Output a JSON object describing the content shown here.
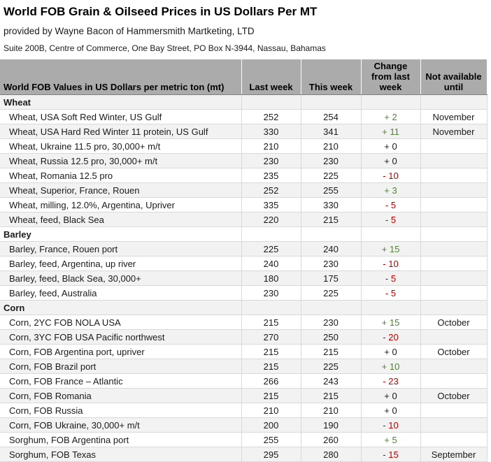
{
  "header": {
    "title": "World FOB Grain & Oilseed Prices in US Dollars Per MT",
    "provider": "provided by Wayne Bacon of Hammersmith Martketing, LTD",
    "address": "Suite 200B, Centre of Commerce, One Bay Street, PO Box N-3944, Nassau, Bahamas"
  },
  "colors": {
    "positive": "#538135",
    "negative": "#C00000",
    "zero": "#1a1a1a",
    "header_bg": "#ABABAB",
    "alt_row_bg": "#F2F2F2"
  },
  "table": {
    "columns": [
      "World FOB Values in US Dollars per metric ton (mt)",
      "Last week",
      "This week",
      "Change from last week",
      "Not available until"
    ],
    "rows": [
      {
        "section": "Wheat"
      },
      {
        "label": "Wheat, USA Soft Red Winter, US Gulf",
        "last": "252",
        "this": "254",
        "change": "+ 2",
        "until": "November"
      },
      {
        "label": "Wheat, USA Hard Red Winter 11 protein, US Gulf",
        "last": "330",
        "this": "341",
        "change": "+ 11",
        "until": "November"
      },
      {
        "label": "Wheat, Ukraine 11.5 pro, 30,000+ m/t",
        "last": "210",
        "this": "210",
        "change": "+ 0",
        "until": ""
      },
      {
        "label": "Wheat, Russia 12.5 pro, 30,000+ m/t",
        "last": "230",
        "this": "230",
        "change": "+ 0",
        "until": ""
      },
      {
        "label": "Wheat, Romania 12.5 pro",
        "last": "235",
        "this": "225",
        "change": "- 10",
        "until": ""
      },
      {
        "label": "Wheat, Superior, France, Rouen",
        "last": "252",
        "this": "255",
        "change": "+ 3",
        "until": ""
      },
      {
        "label": "Wheat, milling, 12.0%, Argentina, Upriver",
        "last": "335",
        "this": "330",
        "change": "- 5",
        "until": ""
      },
      {
        "label": "Wheat, feed, Black Sea",
        "last": "220",
        "this": "215",
        "change": "- 5",
        "until": ""
      },
      {
        "section": "Barley"
      },
      {
        "label": "Barley, France, Rouen port",
        "last": "225",
        "this": "240",
        "change": "+ 15",
        "until": ""
      },
      {
        "label": "Barley, feed, Argentina, up river",
        "last": "240",
        "this": "230",
        "change": "- 10",
        "until": ""
      },
      {
        "label": "Barley, feed, Black Sea, 30,000+",
        "last": "180",
        "this": "175",
        "change": "- 5",
        "until": ""
      },
      {
        "label": "Barley, feed, Australia",
        "last": "230",
        "this": "225",
        "change": "- 5",
        "until": ""
      },
      {
        "section": "Corn"
      },
      {
        "label": "Corn, 2YC FOB NOLA USA",
        "last": "215",
        "this": "230",
        "change": "+ 15",
        "until": "October"
      },
      {
        "label": "Corn, 3YC FOB USA Pacific northwest",
        "last": "270",
        "this": "250",
        "change": "- 20",
        "until": ""
      },
      {
        "label": "Corn, FOB Argentina port, upriver",
        "last": "215",
        "this": "215",
        "change": "+ 0",
        "until": "October"
      },
      {
        "label": "Corn, FOB Brazil port",
        "last": "215",
        "this": "225",
        "change": "+ 10",
        "until": ""
      },
      {
        "label": "Corn, FOB France – Atlantic",
        "last": "266",
        "this": "243",
        "change": "- 23",
        "until": ""
      },
      {
        "label": "Corn, FOB Romania",
        "last": "215",
        "this": "215",
        "change": "+ 0",
        "until": "October"
      },
      {
        "label": "Corn, FOB Russia",
        "last": "210",
        "this": "210",
        "change": "+ 0",
        "until": ""
      },
      {
        "label": "Corn, FOB Ukraine, 30,000+ m/t",
        "last": "200",
        "this": "190",
        "change": "- 10",
        "until": ""
      },
      {
        "label": "Sorghum, FOB Argentina port",
        "last": "255",
        "this": "260",
        "change": "+ 5",
        "until": ""
      },
      {
        "label": "Sorghum, FOB Texas",
        "last": "295",
        "this": "280",
        "change": "- 15",
        "until": "September"
      }
    ]
  }
}
